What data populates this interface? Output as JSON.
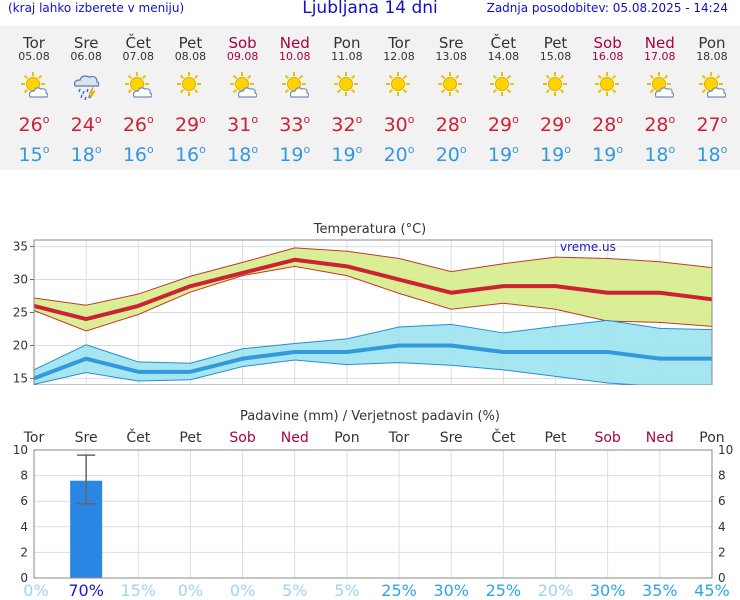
{
  "header": {
    "left_note": "(kraj lahko izberete v meniju)",
    "title": "Ljubljana 14 dni",
    "updated": "Zadnja posodobitev: 05.08.2025 - 14:24"
  },
  "colors": {
    "title_blue": "#1010cc",
    "max_red": "#cc2233",
    "min_blue": "#3399dd",
    "weekend": "#aa0044",
    "max_band": "#d6ec8a",
    "min_band": "#9be3f0",
    "rain_bar": "#2b86e3"
  },
  "days": [
    {
      "name": "Tor",
      "date": "05.08",
      "weekend": false,
      "icon": "sun-partly-cloudy-icon",
      "max": "26",
      "min": "15"
    },
    {
      "name": "Sre",
      "date": "06.08",
      "weekend": false,
      "icon": "thunder-rain-icon",
      "max": "24",
      "min": "18"
    },
    {
      "name": "Čet",
      "date": "07.08",
      "weekend": false,
      "icon": "sun-partly-cloudy-icon",
      "max": "26",
      "min": "16"
    },
    {
      "name": "Pet",
      "date": "08.08",
      "weekend": false,
      "icon": "sun-icon",
      "max": "29",
      "min": "16"
    },
    {
      "name": "Sob",
      "date": "09.08",
      "weekend": true,
      "icon": "sun-partly-cloudy-icon",
      "max": "31",
      "min": "18"
    },
    {
      "name": "Ned",
      "date": "10.08",
      "weekend": true,
      "icon": "sun-partly-cloudy-icon",
      "max": "33",
      "min": "19"
    },
    {
      "name": "Pon",
      "date": "11.08",
      "weekend": false,
      "icon": "sun-icon",
      "max": "32",
      "min": "19"
    },
    {
      "name": "Tor",
      "date": "12.08",
      "weekend": false,
      "icon": "sun-icon",
      "max": "30",
      "min": "20"
    },
    {
      "name": "Sre",
      "date": "13.08",
      "weekend": false,
      "icon": "sun-icon",
      "max": "28",
      "min": "20"
    },
    {
      "name": "Čet",
      "date": "14.08",
      "weekend": false,
      "icon": "sun-icon",
      "max": "29",
      "min": "19"
    },
    {
      "name": "Pet",
      "date": "15.08",
      "weekend": false,
      "icon": "sun-icon",
      "max": "29",
      "min": "19"
    },
    {
      "name": "Sob",
      "date": "16.08",
      "weekend": true,
      "icon": "sun-icon",
      "max": "28",
      "min": "19"
    },
    {
      "name": "Ned",
      "date": "17.08",
      "weekend": true,
      "icon": "sun-partly-cloudy-icon",
      "max": "28",
      "min": "18"
    },
    {
      "name": "Pon",
      "date": "18.08",
      "weekend": false,
      "icon": "sun-partly-cloudy-icon",
      "max": "27",
      "min": "18"
    }
  ],
  "chart_data": [
    {
      "type": "line",
      "title": "Temperatura (°C)",
      "watermark": "vreme.us",
      "ylim": [
        14,
        36
      ],
      "yticks": [
        15,
        20,
        25,
        30,
        35
      ],
      "grid": true,
      "x": [
        "05.08",
        "06.08",
        "07.08",
        "08.08",
        "09.08",
        "10.08",
        "11.08",
        "12.08",
        "13.08",
        "14.08",
        "15.08",
        "16.08",
        "17.08",
        "18.08"
      ],
      "series": [
        {
          "values": [
            26,
            24,
            26,
            29,
            31,
            33,
            32,
            30,
            28,
            29,
            29,
            28,
            28,
            27
          ],
          "band_low": [
            25.3,
            22.2,
            24.7,
            28.1,
            30.6,
            32.0,
            30.6,
            27.9,
            25.5,
            26.4,
            25.5,
            23.7,
            23.5,
            22.9
          ],
          "band_high": [
            27.2,
            26.1,
            27.8,
            30.5,
            32.6,
            34.8,
            34.3,
            33.2,
            31.2,
            32.4,
            33.4,
            33.2,
            32.7,
            31.8
          ]
        },
        {
          "values": [
            15,
            18,
            16,
            16,
            18,
            19,
            19,
            20,
            20,
            19,
            19,
            19,
            18,
            18
          ],
          "band_low": [
            14.1,
            15.9,
            14.6,
            14.8,
            16.8,
            17.8,
            17.1,
            17.4,
            17.0,
            16.3,
            15.3,
            14.3,
            13.8,
            14.0
          ],
          "band_high": [
            16.3,
            20.1,
            17.5,
            17.3,
            19.5,
            20.3,
            21.0,
            22.8,
            23.2,
            21.9,
            22.9,
            23.8,
            22.6,
            22.4
          ]
        }
      ]
    },
    {
      "type": "bar",
      "title": "Padavine (mm) / Verjetnost padavin (%)",
      "ylim": [
        0,
        10
      ],
      "yticks": [
        0,
        2,
        4,
        6,
        8,
        10
      ],
      "categories": [
        "Tor",
        "Sre",
        "Čet",
        "Pet",
        "Sob",
        "Ned",
        "Pon",
        "Tor",
        "Sre",
        "Čet",
        "Pet",
        "Sob",
        "Ned",
        "Pon"
      ],
      "weekend": [
        false,
        false,
        false,
        false,
        true,
        true,
        false,
        false,
        false,
        false,
        false,
        true,
        true,
        false
      ],
      "values": [
        0,
        7.6,
        0,
        0,
        0,
        0,
        0,
        0,
        0,
        0,
        0,
        0,
        0,
        0
      ],
      "error": [
        null,
        [
          5.8,
          9.6
        ],
        null,
        null,
        null,
        null,
        null,
        null,
        null,
        null,
        null,
        null,
        null,
        null
      ],
      "probability": [
        "0%",
        "70%",
        "15%",
        "0%",
        "0%",
        "5%",
        "5%",
        "25%",
        "30%",
        "25%",
        "20%",
        "30%",
        "35%",
        "45%"
      ]
    }
  ]
}
